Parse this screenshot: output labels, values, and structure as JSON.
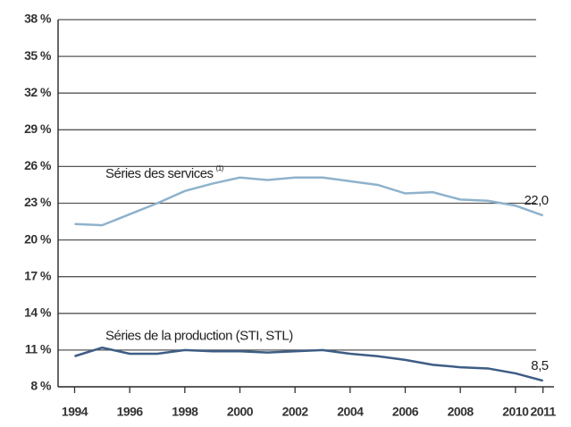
{
  "chart_data": {
    "type": "line",
    "x": [
      1994,
      1995,
      1996,
      1997,
      1998,
      1999,
      2000,
      2001,
      2002,
      2003,
      2004,
      2005,
      2006,
      2007,
      2008,
      2009,
      2010,
      2011
    ],
    "series": [
      {
        "name": "Séries des services",
        "note": "(1)",
        "color": "#8fb2cc",
        "values": [
          21.3,
          21.2,
          22.1,
          23.0,
          24.0,
          24.6,
          25.1,
          24.9,
          25.1,
          25.1,
          24.8,
          24.5,
          23.8,
          23.9,
          23.3,
          23.2,
          22.8,
          22.0
        ],
        "value_labels": [
          null,
          null,
          null,
          null,
          null,
          null,
          null,
          null,
          null,
          null,
          null,
          null,
          null,
          null,
          null,
          null,
          null,
          "22,0"
        ]
      },
      {
        "name": "Séries de la production (STI, STL)",
        "color": "#3d5d85",
        "values": [
          10.5,
          11.2,
          10.7,
          10.7,
          11.0,
          10.9,
          10.9,
          10.8,
          10.9,
          11.0,
          10.7,
          10.5,
          10.2,
          9.8,
          9.6,
          9.5,
          9.1,
          8.5
        ],
        "value_labels": [
          null,
          null,
          null,
          null,
          null,
          null,
          null,
          null,
          null,
          null,
          null,
          null,
          null,
          null,
          null,
          null,
          null,
          "8,5"
        ]
      }
    ],
    "xlim": [
      1993.4,
      2011.4
    ],
    "xticks": [
      1994,
      1996,
      1998,
      2000,
      2002,
      2004,
      2006,
      2008,
      2010,
      2011
    ],
    "ylim": [
      8,
      38
    ],
    "yticks": [
      {
        "value": 8,
        "label": "8 %"
      },
      {
        "value": 11,
        "label": "11 %"
      },
      {
        "value": 14,
        "label": "14 %"
      },
      {
        "value": 17,
        "label": "17 %"
      },
      {
        "value": 20,
        "label": "20 %"
      },
      {
        "value": 23,
        "label": "23 %"
      },
      {
        "value": 26,
        "label": "26 %"
      },
      {
        "value": 29,
        "label": "29 %"
      },
      {
        "value": 32,
        "label": "32 %"
      },
      {
        "value": 35,
        "label": "35 %"
      },
      {
        "value": 38,
        "label": "38 %"
      }
    ],
    "grid": true
  }
}
